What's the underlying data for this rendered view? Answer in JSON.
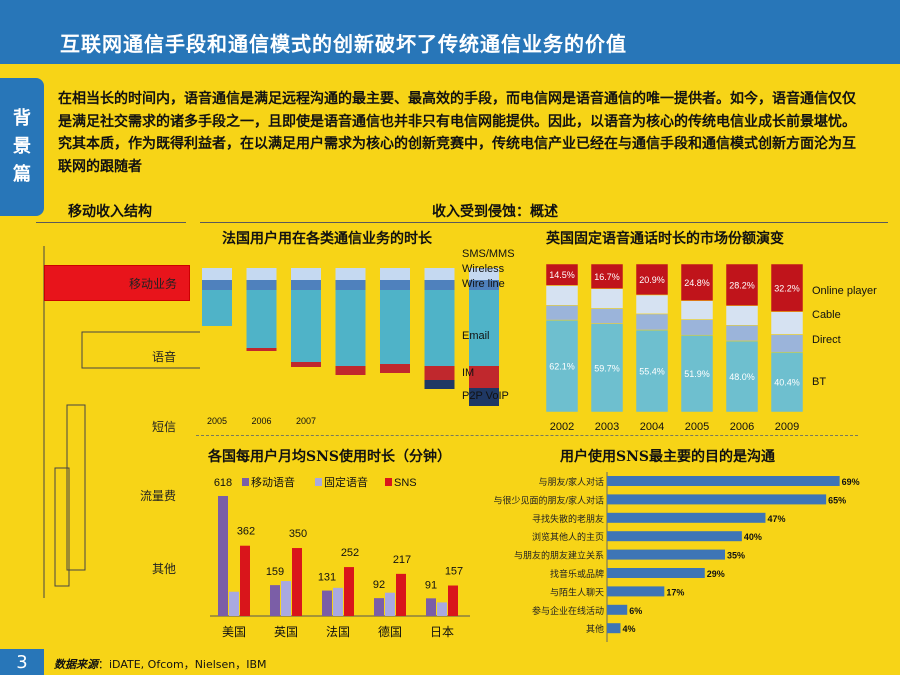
{
  "header": {
    "title": "互联网通信手段和通信模式的创新破坏了传统通信业务的价值"
  },
  "side_tab": {
    "label": [
      "背",
      "景",
      "篇"
    ]
  },
  "intro": {
    "text": "在相当长的时间内，语音通信是满足远程沟通的最主要、最高效的手段，而电信网是语音通信的唯一提供者。如今，语音通信仅仅是满足社交需求的诸多手段之一，且即使是语音通信也并非只有电信网能提供。因此，以语音为核心的传统电信业成长前景堪忧。究其本质，作为既得利益者，在以满足用户需求为核心的创新竞赛中，传统电信产业已经在与通信手段和通信模式创新方面沦为互联网的跟随者"
  },
  "sections": {
    "left": "移动收入结构",
    "right": "收入受到侵蚀：概述"
  },
  "tree": {
    "mobile": "移动业务",
    "voice": "语音",
    "sms": "短信",
    "data": "流量费",
    "other": "其他"
  },
  "footer": {
    "page": "3",
    "source_label": "数据来源",
    "source_text": "：iDATE, Ofcom，Nielsen，IBM"
  },
  "colors": {
    "background": "#f7d417",
    "header": "#2876b8",
    "red": "#c0282d",
    "teal": "#4fb3c8",
    "blue": "#4f81bd",
    "light_blue": "#c5d9f1",
    "dark_navy": "#1f3864",
    "purple": "#7b5ea7",
    "lavender": "#a9a9e0"
  },
  "chart_data": [
    {
      "type": "bar",
      "title": "法国用户用在各类通信业务的时长",
      "categories": [
        "2005",
        "2006",
        "2007",
        "",
        "",
        "",
        ""
      ],
      "series_labels": [
        "SMS/MMS",
        "Wireless",
        "Wire line",
        "Email",
        "IM",
        "P2P VoIP"
      ],
      "note": ""
    },
    {
      "type": "bar",
      "title": "英国固定语音通话时长的市场份额演变",
      "categories": [
        "2002",
        "2003",
        "2004",
        "2005",
        "2006",
        "2009"
      ],
      "series": [
        {
          "name": "BT",
          "values": [
            62.1,
            59.7,
            55.4,
            51.9,
            48.0,
            40.4
          ],
          "labels": [
            "62.1%",
            "59.7%",
            "55.4%",
            "51.9%",
            "48.0%",
            "40.4%"
          ]
        },
        {
          "name": "Direct",
          "values": [
            10.0,
            10.3,
            10.9,
            10.6,
            10.6,
            12.0
          ]
        },
        {
          "name": "Cable",
          "values": [
            13.4,
            13.3,
            12.8,
            12.7,
            13.2,
            15.4
          ]
        },
        {
          "name": "Online player",
          "values": [
            14.5,
            16.7,
            20.9,
            24.8,
            28.2,
            32.2
          ],
          "labels": [
            "14.5%",
            "16.7%",
            "20.9%",
            "24.8%",
            "28.2%",
            "32.2%"
          ]
        }
      ],
      "ylim": [
        0,
        100
      ]
    },
    {
      "type": "bar",
      "title": "各国每用户月均SNS使用时长（分钟）",
      "categories": [
        "美国",
        "英国",
        "法国",
        "德国",
        "日本"
      ],
      "series": [
        {
          "name": "移动语音",
          "values": [
            618,
            159,
            131,
            92,
            91
          ]
        },
        {
          "name": "固定语音",
          "values": [
            125,
            180,
            145,
            120,
            70
          ]
        },
        {
          "name": "SNS",
          "values": [
            362,
            350,
            252,
            217,
            157
          ]
        }
      ],
      "ylim": [
        0,
        700
      ]
    },
    {
      "type": "bar",
      "title": "用户使用SNS最主要的目的是沟通",
      "categories": [
        "与朋友/家人对话",
        "与很少见面的朋友/家人对话",
        "寻找失散的老朋友",
        "浏览其他人的主页",
        "与朋友的朋友建立关系",
        "找音乐或品牌",
        "与陌生人聊天",
        "参与企业在线活动",
        "其他"
      ],
      "values": [
        69,
        65,
        47,
        40,
        35,
        29,
        17,
        6,
        4
      ],
      "labels": [
        "69%",
        "65%",
        "47%",
        "40%",
        "35%",
        "29%",
        "17%",
        "6%",
        "4%"
      ],
      "xlim": [
        0,
        70
      ]
    }
  ]
}
